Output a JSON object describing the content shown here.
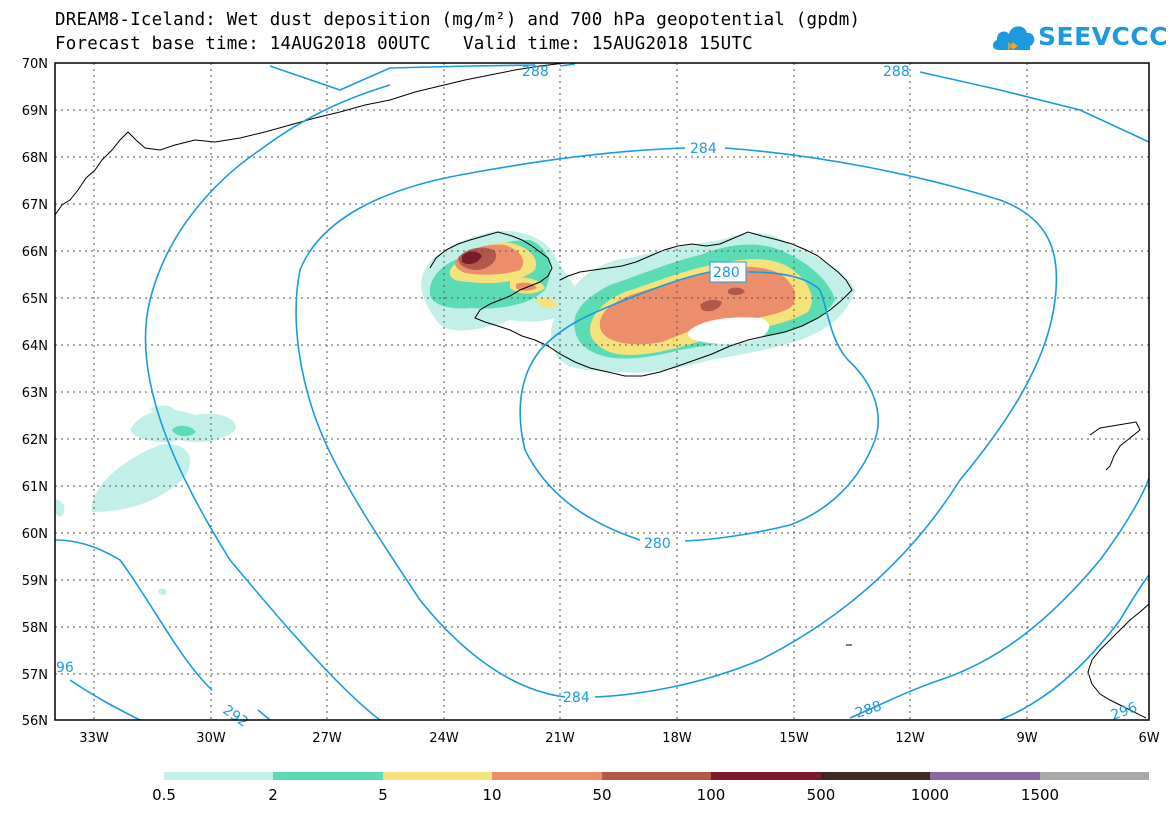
{
  "header": {
    "title_line1": "DREAM8-Iceland: Wet dust deposition (mg/m²) and 700 hPa geopotential (gpdm)",
    "title_line2": "Forecast base time: 14AUG2018 00UTC   Valid time: 15AUG2018 15UTC"
  },
  "logo": {
    "text": "SEEVCCC",
    "icon": "cloud-logo-icon"
  },
  "map": {
    "latitude_labels": [
      "70N",
      "69N",
      "68N",
      "67N",
      "66N",
      "65N",
      "64N",
      "63N",
      "62N",
      "61N",
      "60N",
      "59N",
      "58N",
      "57N",
      "56N"
    ],
    "longitude_labels": [
      "33W",
      "30W",
      "27W",
      "24W",
      "21W",
      "18W",
      "15W",
      "12W",
      "9W",
      "6W"
    ],
    "contour_labels": [
      "288",
      "288",
      "284",
      "280",
      "280",
      "284",
      "288",
      "292",
      "96",
      "296"
    ],
    "contour_color": "#1b9ae0"
  },
  "legend": {
    "labels": [
      "0.5",
      "2",
      "5",
      "10",
      "50",
      "100",
      "500",
      "1000",
      "1500"
    ],
    "colors": [
      "#c2f0e8",
      "#5bdcb4",
      "#f6e27a",
      "#ec8e6c",
      "#b0584a",
      "#7a1a2a",
      "#3c2a20",
      "#8a6a9e",
      "#a8a8a8"
    ]
  }
}
